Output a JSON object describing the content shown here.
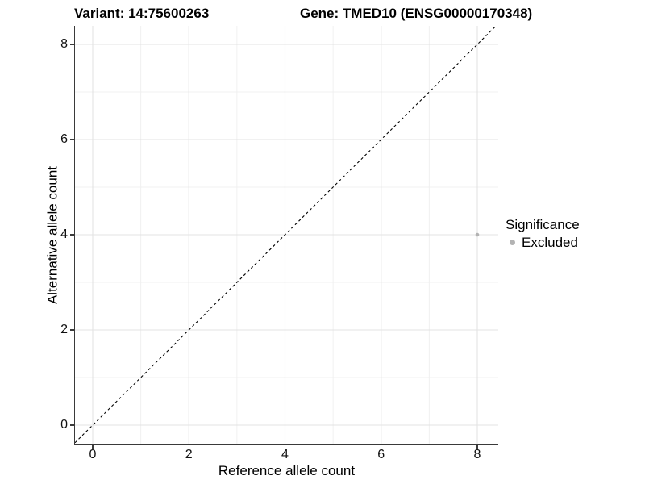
{
  "figure": {
    "titles": {
      "left": "Variant: 14:75600263",
      "right": "Gene: TMED10 (ENSG00000170348)"
    }
  },
  "axes": {
    "x": {
      "label": "Reference allele count",
      "ticks": [
        "0",
        "2",
        "4",
        "6",
        "8"
      ]
    },
    "y": {
      "label": "Alternative allele count",
      "ticks": [
        "0",
        "2",
        "4",
        "6",
        "8"
      ]
    }
  },
  "legend": {
    "title": "Significance",
    "items": [
      {
        "label": "Excluded",
        "color": "#b3b3b3"
      }
    ]
  },
  "chart_data": {
    "type": "scatter",
    "title": "Variant: 14:75600263 | Gene: TMED10 (ENSG00000170348)",
    "xlabel": "Reference allele count",
    "ylabel": "Alternative allele count",
    "xlim": [
      -0.37,
      8.47
    ],
    "ylim": [
      -0.41,
      8.37
    ],
    "x_major": [
      0,
      2,
      4,
      6,
      8
    ],
    "x_minor": [
      1,
      3,
      5,
      7
    ],
    "y_major": [
      0,
      2,
      4,
      6,
      8
    ],
    "y_minor": [
      1,
      3,
      5,
      7
    ],
    "grid": true,
    "grid_colors": {
      "major": "#e3e3e3",
      "minor": "#f0f0f0"
    },
    "legend_position": "right",
    "series": [
      {
        "name": "Excluded",
        "color": "#b3b3b3",
        "points": [
          {
            "x": 8,
            "y": 4
          }
        ]
      }
    ],
    "reference_line": {
      "type": "identity",
      "style": "dashed",
      "color": "#000000"
    }
  }
}
